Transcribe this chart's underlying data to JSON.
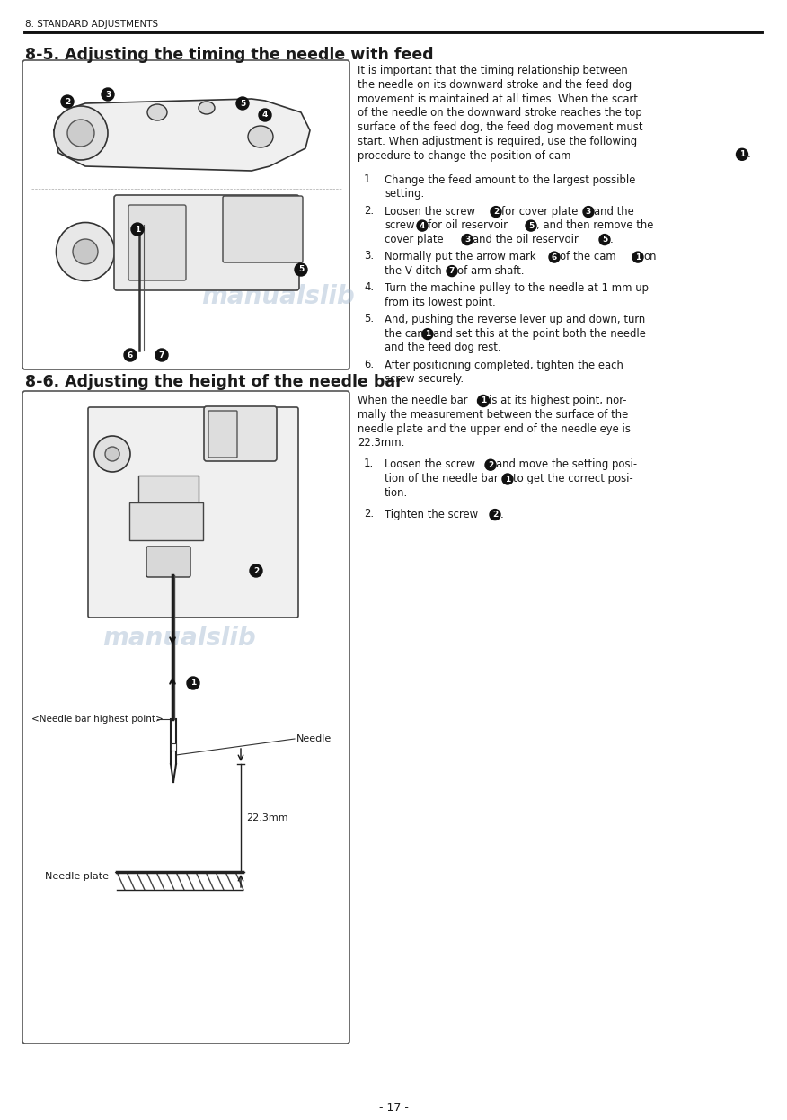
{
  "page_header": "8. STANDARD ADJUSTMENTS",
  "section1_title": "8-5. Adjusting the timing the needle with feed",
  "section2_title": "8-6. Adjusting the height of the needle bar",
  "intro1_lines": [
    "It is important that the timing relationship between",
    "the needle on its downward stroke and the feed dog",
    "movement is maintained at all times. When the scart",
    "of the needle on the downward stroke reaches the top",
    "surface of the feed dog, the feed dog movement must",
    "start. When adjustment is required, use the following",
    "procedure to change the position of cam"
  ],
  "step1_lines": [
    [
      "Change the feed amount to the largest possible",
      "setting."
    ]
  ],
  "step2_lines": [
    [
      "Loosen the screw",
      "for cover plate",
      "and the"
    ],
    [
      "screw",
      "for oil reservoir",
      ", and then remove the"
    ],
    [
      "cover plate",
      "and the oil reservoir",
      "."
    ]
  ],
  "step3_lines": [
    [
      "Normally put the arrow mark",
      "of the cam",
      "on"
    ],
    [
      "the V ditch",
      "of arm shaft."
    ]
  ],
  "step4_lines": [
    [
      "Turn the machine pulley to the needle at 1 mm up"
    ],
    [
      "from its lowest point."
    ]
  ],
  "step5_lines": [
    [
      "And, pushing the reverse lever up and down, turn"
    ],
    [
      "the cam",
      "and set this at the point both the needle"
    ],
    [
      "and the feed dog rest."
    ]
  ],
  "step6_lines": [
    [
      "After positioning completed, tighten the each"
    ],
    [
      "screw securely."
    ]
  ],
  "sec2_intro_lines": [
    "When the needle bar",
    "is at its highest point, nor-",
    "mally the measurement between the surface of the",
    "needle plate and the upper end of the needle eye is",
    "22.3mm."
  ],
  "sec2_step1_lines": [
    "Loosen the screw",
    "and move the setting posi-",
    "tion of the needle bar",
    "to get the correct posi-",
    "tion."
  ],
  "sec2_step2_line": "Tighten the screw",
  "needle_bar_label": "<Needle bar highest point>",
  "needle_label": "Needle",
  "needle_plate_label": "Needle plate",
  "measurement_label": "22.3mm",
  "page_number": "- 17 -",
  "bg_color": "#ffffff",
  "text_color": "#1a1a1a",
  "header_line_color": "#111111",
  "watermark_color": "#aabfd4",
  "box_edge_color": "#555555",
  "diagram_line_color": "#222222"
}
